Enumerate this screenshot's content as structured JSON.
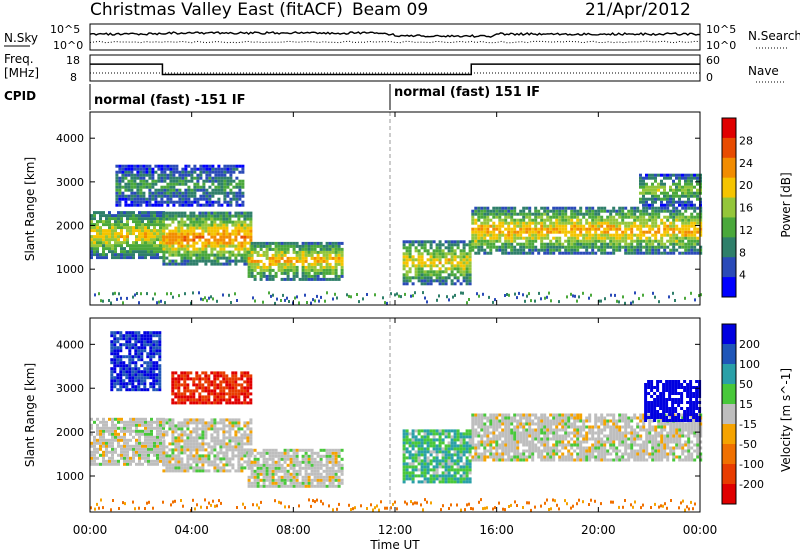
{
  "header": {
    "title": "Christmas Valley East (fitACF)",
    "beam": "Beam 09",
    "date": "21/Apr/2012"
  },
  "strips": {
    "nsky_label": "N.Sky",
    "nsky_ticks": [
      "10^5",
      "10^0"
    ],
    "nsearch_label": "N.Search",
    "nsearch_ticks": [
      "10^5",
      "10^0"
    ],
    "freq_label_1": "Freq.",
    "freq_label_2": "[MHz]",
    "freq_ticks": [
      "18",
      "8"
    ],
    "nave_label": "Nave",
    "nave_ticks": [
      "60",
      "0"
    ],
    "cpid_label": "CPID",
    "cpid_segments": [
      {
        "start_ut": 0,
        "end_ut": 12,
        "label": "normal (fast) -151 IF"
      },
      {
        "start_ut": 12,
        "end_ut": 24,
        "label": "normal (fast) 151 IF"
      }
    ],
    "freq_series": [
      {
        "start_ut": 0,
        "end_ut": 2.85,
        "mhz": 14.5
      },
      {
        "start_ut": 2.85,
        "end_ut": 15.0,
        "mhz": 10.5
      },
      {
        "start_ut": 15.0,
        "end_ut": 24,
        "mhz": 14.5
      }
    ]
  },
  "chart_data": [
    {
      "type": "heatmap",
      "name": "power",
      "ylabel": "Slant Range [km]",
      "yticks": [
        "1000",
        "2000",
        "3000",
        "4000"
      ],
      "ylim": [
        180,
        4600
      ],
      "xlim": [
        0,
        24
      ],
      "colorbar_label": "Power [dB]",
      "colorbar_ticks": [
        "4",
        "8",
        "12",
        "16",
        "20",
        "24",
        "28"
      ],
      "colorbar_range": [
        0,
        32
      ],
      "colors": [
        "#0000ff",
        "#2a4ab8",
        "#2f7f6a",
        "#4aa83b",
        "#94c63a",
        "#f5c400",
        "#f28c00",
        "#e84b00",
        "#e00000"
      ],
      "echo_regions": [
        {
          "t0": 0,
          "t1": 2.85,
          "r0": 1300,
          "r1": 2350,
          "value": 18
        },
        {
          "t0": 2.85,
          "t1": 6.3,
          "r0": 1150,
          "r1": 2350,
          "value": 22
        },
        {
          "t0": 6.2,
          "t1": 9.9,
          "r0": 800,
          "r1": 1650,
          "value": 20
        },
        {
          "t0": 12.3,
          "t1": 14.9,
          "r0": 700,
          "r1": 1700,
          "value": 18
        },
        {
          "t0": 15.0,
          "t1": 24,
          "r0": 1400,
          "r1": 2450,
          "value": 20
        },
        {
          "t0": 21.6,
          "t1": 24,
          "r0": 2500,
          "r1": 3200,
          "value": 14
        },
        {
          "t0": 1.0,
          "t1": 6.0,
          "r0": 2500,
          "r1": 3400,
          "value": 10
        }
      ]
    },
    {
      "type": "heatmap",
      "name": "velocity",
      "ylabel": "Slant Range [km]",
      "yticks": [
        "1000",
        "2000",
        "3000",
        "4000"
      ],
      "ylim": [
        180,
        4600
      ],
      "xlim": [
        0,
        24
      ],
      "xlabel": "Time UT",
      "xticks": [
        "00:00",
        "04:00",
        "08:00",
        "12:00",
        "16:00",
        "20:00",
        "00:00"
      ],
      "colorbar_label": "Velocity [m s^-1]",
      "colorbar_ticks": [
        "200",
        "100",
        "50",
        "15",
        "-15",
        "-50",
        "-100",
        "-200"
      ],
      "colors": [
        "#0000e0",
        "#1f56b8",
        "#2aa0a8",
        "#48c83a",
        "#bebebe",
        "#f5a300",
        "#f07000",
        "#e83c00",
        "#e00000"
      ],
      "echo_regions": [
        {
          "t0": 0,
          "t1": 2.85,
          "r0": 1300,
          "r1": 2350,
          "value": 0
        },
        {
          "t0": 2.85,
          "t1": 6.3,
          "r0": 1150,
          "r1": 2350,
          "value": 0
        },
        {
          "t0": 6.2,
          "t1": 9.9,
          "r0": 800,
          "r1": 1650,
          "value": 0
        },
        {
          "t0": 15.0,
          "t1": 24,
          "r0": 1400,
          "r1": 2450,
          "value": 0
        },
        {
          "t0": 3.2,
          "t1": 6.3,
          "r0": 2700,
          "r1": 3400,
          "value": -150
        },
        {
          "t0": 21.8,
          "t1": 24,
          "r0": 2300,
          "r1": 3200,
          "value": 180
        },
        {
          "t0": 0.8,
          "t1": 2.8,
          "r0": 3000,
          "r1": 4300,
          "value": 150
        },
        {
          "t0": 12.3,
          "t1": 14.9,
          "r0": 900,
          "r1": 2100,
          "value": 30
        }
      ]
    }
  ]
}
